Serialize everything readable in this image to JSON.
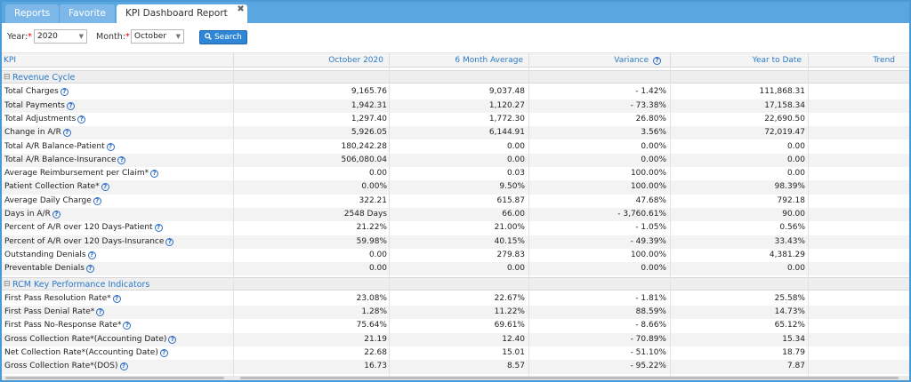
{
  "tabs": [
    {
      "label": "Reports"
    },
    {
      "label": "Favorite"
    },
    {
      "label": "KPI Dashboard Report",
      "close": "✖"
    }
  ],
  "filters": {
    "year_label": "Year:",
    "year_value": "2020",
    "month_label": "Month:",
    "month_value": "October",
    "search_label": "Search",
    "required_mark": "*"
  },
  "columns": {
    "kpi": "KPI",
    "current": "October 2020",
    "avg": "6 Month Average",
    "variance": "Variance",
    "ytd": "Year to Date",
    "trend": "Trend"
  },
  "groups": {
    "revenue": "Revenue Cycle",
    "rcm": "RCM Key Performance Indicators"
  },
  "revenue_rows": [
    {
      "kpi": "Total Charges",
      "current": "9,165.76",
      "avg": "9,037.48",
      "variance": "- 1.42%",
      "ytd": "111,868.31"
    },
    {
      "kpi": "Total Payments",
      "current": "1,942.31",
      "avg": "1,120.27",
      "variance": "- 73.38%",
      "ytd": "17,158.34"
    },
    {
      "kpi": "Total Adjustments",
      "current": "1,297.40",
      "avg": "1,772.30",
      "variance": "26.80%",
      "ytd": "22,690.50"
    },
    {
      "kpi": "Change in A/R",
      "current": "5,926.05",
      "avg": "6,144.91",
      "variance": "3.56%",
      "ytd": "72,019.47"
    },
    {
      "kpi": "Total A/R Balance-Patient",
      "current": "180,242.28",
      "avg": "0.00",
      "variance": "0.00%",
      "ytd": "0.00"
    },
    {
      "kpi": "Total A/R Balance-Insurance",
      "current": "506,080.04",
      "avg": "0.00",
      "variance": "0.00%",
      "ytd": "0.00"
    },
    {
      "kpi": "Average Reimbursement per Claim*",
      "current": "0.00",
      "avg": "0.03",
      "variance": "100.00%",
      "ytd": "0.00"
    },
    {
      "kpi": "Patient Collection Rate*",
      "current": "0.00%",
      "avg": "9.50%",
      "variance": "100.00%",
      "ytd": "98.39%"
    },
    {
      "kpi": "Average Daily Charge",
      "current": "322.21",
      "avg": "615.87",
      "variance": "47.68%",
      "ytd": "792.18"
    },
    {
      "kpi": "Days in A/R",
      "current": "2548 Days",
      "avg": "66.00",
      "variance": "- 3,760.61%",
      "ytd": "90.00"
    },
    {
      "kpi": "Percent of A/R over 120 Days-Patient",
      "current": "21.22%",
      "avg": "21.00%",
      "variance": "- 1.05%",
      "ytd": "0.56%"
    },
    {
      "kpi": "Percent of A/R over 120 Days-Insurance",
      "current": "59.98%",
      "avg": "40.15%",
      "variance": "- 49.39%",
      "ytd": "33.43%"
    },
    {
      "kpi": "Outstanding Denials",
      "current": "0.00",
      "avg": "279.83",
      "variance": "100.00%",
      "ytd": "4,381.29"
    },
    {
      "kpi": "Preventable Denials",
      "current": "0.00",
      "avg": "0.00",
      "variance": "0.00%",
      "ytd": "0.00"
    }
  ],
  "rcm_rows": [
    {
      "kpi": "First Pass Resolution Rate*",
      "current": "23.08%",
      "avg": "22.67%",
      "variance": "- 1.81%",
      "ytd": "25.58%"
    },
    {
      "kpi": "First Pass Denial Rate*",
      "current": "1.28%",
      "avg": "11.22%",
      "variance": "88.59%",
      "ytd": "14.73%"
    },
    {
      "kpi": "First Pass No-Response Rate*",
      "current": "75.64%",
      "avg": "69.61%",
      "variance": "- 8.66%",
      "ytd": "65.12%"
    },
    {
      "kpi": "Gross Collection Rate*(Accounting Date)",
      "current": "21.19",
      "avg": "12.40",
      "variance": "- 70.89%",
      "ytd": "15.34"
    },
    {
      "kpi": "Net Collection Rate*(Accounting Date)",
      "current": "22.68",
      "avg": "15.01",
      "variance": "- 51.10%",
      "ytd": "18.79"
    },
    {
      "kpi": "Gross Collection Rate*(DOS)",
      "current": "16.73",
      "avg": "8.57",
      "variance": "- 95.22%",
      "ytd": "7.87"
    }
  ],
  "icons": {
    "help": "?",
    "collapse": "⊟",
    "search": "search-icon",
    "dropdown": "▼"
  },
  "colors": {
    "accent": "#2b7bc8",
    "tabbar": "#5aa6e0",
    "button": "#2f86d6"
  }
}
